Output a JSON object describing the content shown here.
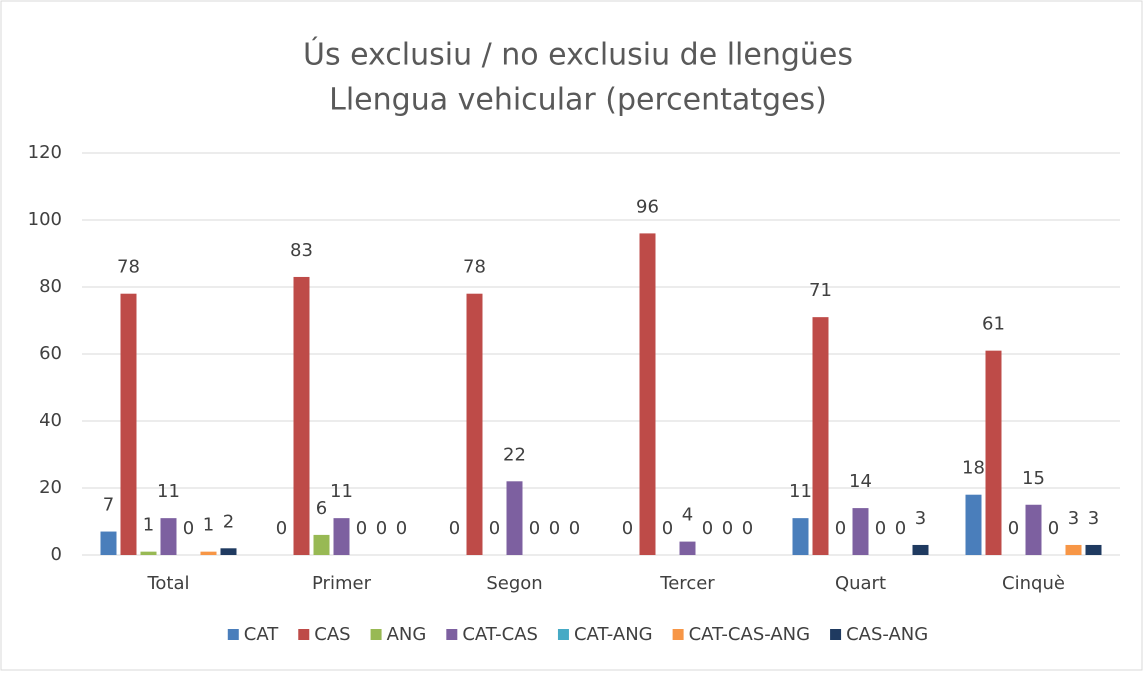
{
  "chart_data": {
    "type": "bar",
    "title": [
      "Ús exclusiu / no exclusiu de llengües",
      "Llengua vehicular (percentatges)"
    ],
    "categories": [
      "Total",
      "Primer",
      "Segon",
      "Tercer",
      "Quart",
      "Cinquè"
    ],
    "series": [
      {
        "name": "CAT",
        "color": "#4a7ebb",
        "values": [
          7,
          0,
          0,
          0,
          11,
          18
        ]
      },
      {
        "name": "CAS",
        "color": "#be4b48",
        "values": [
          78,
          83,
          78,
          96,
          71,
          61
        ]
      },
      {
        "name": "ANG",
        "color": "#98b954",
        "values": [
          1,
          6,
          0,
          0,
          0,
          0
        ]
      },
      {
        "name": "CAT-CAS",
        "color": "#7d60a0",
        "values": [
          11,
          11,
          22,
          4,
          14,
          15
        ]
      },
      {
        "name": "CAT-ANG",
        "color": "#46aac5",
        "values": [
          0,
          0,
          0,
          0,
          0,
          0
        ]
      },
      {
        "name": "CAT-CAS-ANG",
        "color": "#f79646",
        "values": [
          1,
          0,
          0,
          0,
          0,
          3
        ]
      },
      {
        "name": "CAS-ANG",
        "color": "#1f3a60",
        "values": [
          2,
          0,
          0,
          0,
          3,
          3
        ]
      }
    ],
    "ylim": [
      0,
      120
    ],
    "yticks": [
      0,
      20,
      40,
      60,
      80,
      100,
      120
    ],
    "grid": true,
    "legend": "bottom"
  }
}
